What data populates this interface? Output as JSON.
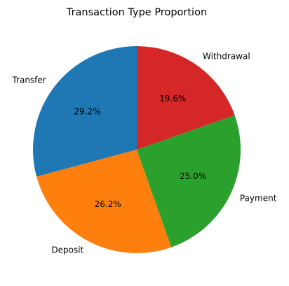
{
  "chart_data": {
    "type": "pie",
    "title": "Transaction Type Proportion",
    "start_angle_deg": 90,
    "direction": "counterclockwise",
    "slices": [
      {
        "label": "Transfer",
        "value": 29.2,
        "pct_label": "29.2%",
        "color": "#1f77b4"
      },
      {
        "label": "Deposit",
        "value": 26.2,
        "pct_label": "26.2%",
        "color": "#ff7f0e"
      },
      {
        "label": "Payment",
        "value": 25.0,
        "pct_label": "25.0%",
        "color": "#2ca02c"
      },
      {
        "label": "Withdrawal",
        "value": 19.6,
        "pct_label": "19.6%",
        "color": "#d62728"
      }
    ]
  }
}
